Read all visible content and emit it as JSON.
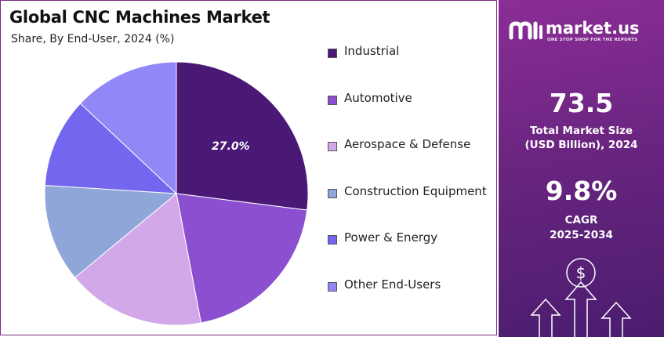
{
  "chart_data": {
    "type": "pie",
    "title": "Global CNC Machines Market",
    "subtitle": "Share, By End-User, 2024 (%)",
    "legend_position": "right",
    "slices": [
      {
        "label": "Industrial",
        "value": 27.0,
        "color": "#4a1875",
        "show_label": "27.0%"
      },
      {
        "label": "Automotive",
        "value": 20.0,
        "color": "#8c4fd0"
      },
      {
        "label": "Aerospace & Defense",
        "value": 17.0,
        "color": "#d3a8e8"
      },
      {
        "label": "Construction Equipment",
        "value": 12.0,
        "color": "#8fa6d8"
      },
      {
        "label": "Power & Energy",
        "value": 11.0,
        "color": "#7367f0"
      },
      {
        "label": "Other End-Users",
        "value": 13.0,
        "color": "#9187f6"
      }
    ]
  },
  "brand": {
    "name": "market.us",
    "tagline": "ONE STOP SHOP FOR THE REPORTS"
  },
  "stats": {
    "market_size_value": "73.5",
    "market_size_label_1": "Total Market Size",
    "market_size_label_2": "(USD Billion), 2024",
    "cagr_value": "9.8%",
    "cagr_label_1": "CAGR",
    "cagr_label_2": "2025-2034"
  },
  "colors": {
    "panel_accent": "#7b2a8c",
    "frame_border": "#7a2a7e"
  }
}
